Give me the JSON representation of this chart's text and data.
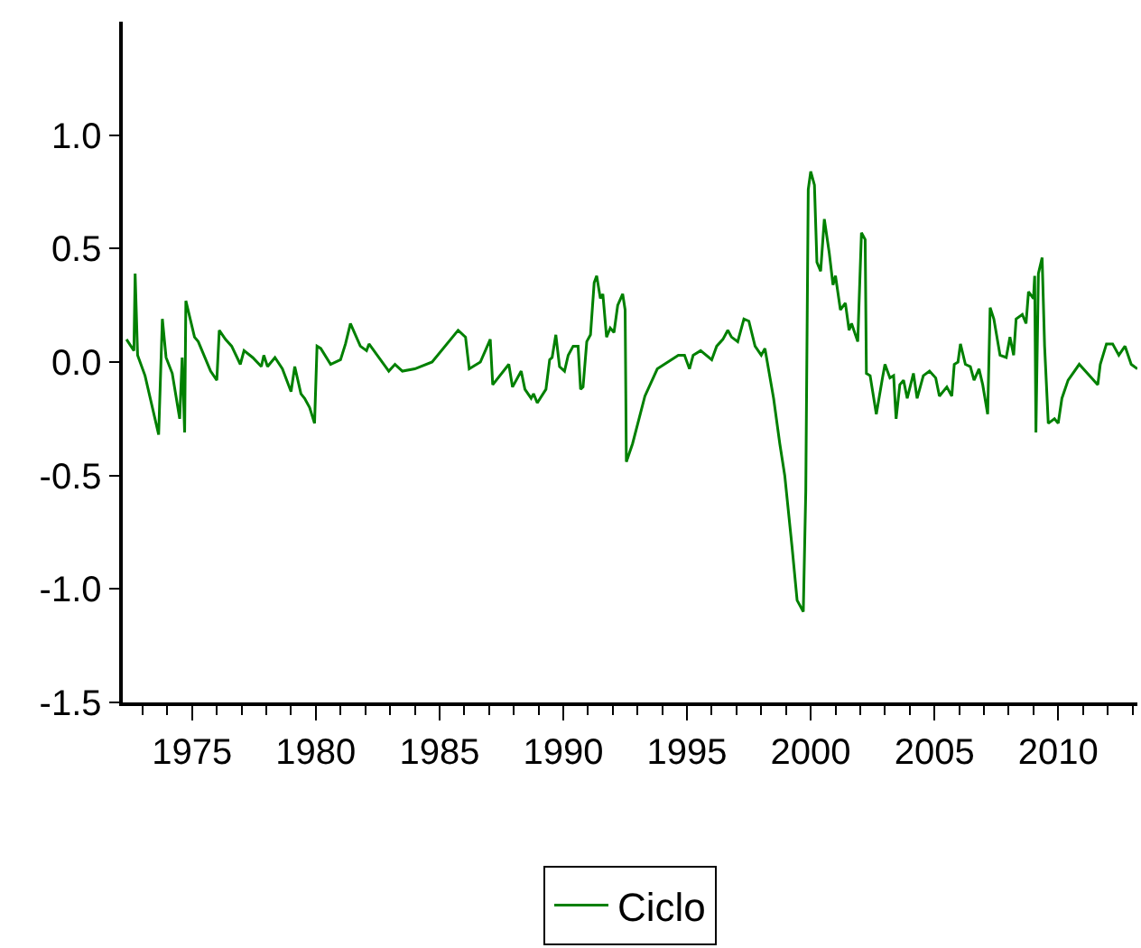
{
  "chart_data": {
    "type": "line",
    "legend": "bottom",
    "grid": false,
    "marker": "none",
    "line_style": "solid",
    "xlim": [
      1972.2,
      2013.2
    ],
    "xticks": [
      1975,
      1980,
      1985,
      1990,
      1995,
      2000,
      2005,
      2010
    ],
    "ylim": [
      -1.5,
      1.5
    ],
    "yticks": [
      -1.5,
      {
        "value": -1,
        "label": "-1.0"
      },
      -0.5,
      {
        "value": 0,
        "label": "0.0"
      },
      0.5,
      {
        "value": 1,
        "label": "1.0"
      }
    ],
    "series": [
      {
        "name": "Ciclo",
        "color": "#008000",
        "x": [
          1972.35,
          1972.65,
          1972.7,
          1972.8,
          1973.1,
          1973.65,
          1973.8,
          1973.95,
          1974.2,
          1974.5,
          1974.6,
          1974.7,
          1974.75,
          1975.1,
          1975.25,
          1975.75,
          1976.0,
          1976.1,
          1976.35,
          1976.6,
          1976.95,
          1977.1,
          1977.45,
          1977.8,
          1977.9,
          1978.05,
          1978.35,
          1978.65,
          1979.0,
          1979.15,
          1979.4,
          1979.55,
          1979.75,
          1979.95,
          1980.05,
          1980.2,
          1980.6,
          1981.0,
          1981.2,
          1981.4,
          1981.8,
          1982.05,
          1982.15,
          1982.95,
          1983.2,
          1983.5,
          1984.0,
          1984.7,
          1985.75,
          1986.05,
          1986.2,
          1986.65,
          1987.05,
          1987.15,
          1987.8,
          1987.95,
          1988.3,
          1988.45,
          1988.7,
          1988.8,
          1988.95,
          1989.3,
          1989.45,
          1989.55,
          1989.7,
          1989.85,
          1990.05,
          1990.2,
          1990.4,
          1990.6,
          1990.7,
          1990.8,
          1990.95,
          1991.1,
          1991.25,
          1991.35,
          1991.5,
          1991.6,
          1991.75,
          1991.9,
          1992.05,
          1992.2,
          1992.4,
          1992.5,
          1992.55,
          1992.8,
          1993.3,
          1993.8,
          1994.65,
          1994.9,
          1995.1,
          1995.25,
          1995.55,
          1996.0,
          1996.2,
          1996.45,
          1996.65,
          1996.8,
          1997.05,
          1997.3,
          1997.5,
          1997.75,
          1998.0,
          1998.15,
          1998.5,
          1998.75,
          1998.95,
          1999.25,
          1999.45,
          1999.7,
          1999.8,
          1999.9,
          2000.0,
          2000.15,
          2000.25,
          2000.4,
          2000.55,
          2000.75,
          2000.9,
          2001.0,
          2001.2,
          2001.4,
          2001.55,
          2001.65,
          2001.9,
          2002.05,
          2002.2,
          2002.25,
          2002.4,
          2002.65,
          2002.9,
          2003.0,
          2003.2,
          2003.35,
          2003.45,
          2003.6,
          2003.75,
          2003.9,
          2004.15,
          2004.3,
          2004.55,
          2004.8,
          2005.05,
          2005.2,
          2005.5,
          2005.7,
          2005.8,
          2005.95,
          2006.05,
          2006.25,
          2006.45,
          2006.6,
          2006.8,
          2006.95,
          2007.15,
          2007.25,
          2007.4,
          2007.65,
          2007.9,
          2008.05,
          2008.2,
          2008.3,
          2008.55,
          2008.7,
          2008.8,
          2009.0,
          2009.05,
          2009.1,
          2009.2,
          2009.35,
          2009.45,
          2009.6,
          2009.85,
          2010.0,
          2010.15,
          2010.4,
          2010.85,
          2011.6,
          2011.7,
          2011.95,
          2012.2,
          2012.45,
          2012.7,
          2012.95,
          2013.2
        ],
        "values": [
          0.1,
          0.05,
          0.39,
          0.03,
          -0.06,
          -0.32,
          0.19,
          0.02,
          -0.05,
          -0.25,
          0.02,
          -0.31,
          0.27,
          0.11,
          0.09,
          -0.04,
          -0.08,
          0.14,
          0.1,
          0.07,
          -0.01,
          0.05,
          0.02,
          -0.02,
          0.03,
          -0.02,
          0.02,
          -0.03,
          -0.13,
          -0.02,
          -0.14,
          -0.16,
          -0.2,
          -0.27,
          0.07,
          0.06,
          -0.01,
          0.01,
          0.08,
          0.17,
          0.07,
          0.05,
          0.08,
          -0.04,
          -0.01,
          -0.04,
          -0.03,
          0.0,
          0.14,
          0.11,
          -0.03,
          0.0,
          0.1,
          -0.1,
          -0.01,
          -0.11,
          -0.04,
          -0.12,
          -0.16,
          -0.14,
          -0.18,
          -0.12,
          0.01,
          0.02,
          0.12,
          -0.02,
          -0.04,
          0.03,
          0.07,
          0.07,
          -0.12,
          -0.11,
          0.09,
          0.12,
          0.35,
          0.38,
          0.28,
          0.3,
          0.11,
          0.15,
          0.13,
          0.25,
          0.3,
          0.23,
          -0.44,
          -0.36,
          -0.15,
          -0.03,
          0.03,
          0.03,
          -0.03,
          0.03,
          0.05,
          0.01,
          0.07,
          0.1,
          0.14,
          0.11,
          0.09,
          0.19,
          0.18,
          0.07,
          0.03,
          0.06,
          -0.16,
          -0.36,
          -0.5,
          -0.82,
          -1.05,
          -1.1,
          -0.57,
          0.76,
          0.84,
          0.78,
          0.44,
          0.4,
          0.63,
          0.48,
          0.34,
          0.38,
          0.23,
          0.26,
          0.14,
          0.17,
          0.09,
          0.57,
          0.54,
          -0.05,
          -0.06,
          -0.23,
          -0.07,
          -0.01,
          -0.07,
          -0.06,
          -0.25,
          -0.1,
          -0.08,
          -0.16,
          -0.05,
          -0.16,
          -0.06,
          -0.04,
          -0.07,
          -0.15,
          -0.11,
          -0.15,
          -0.01,
          0.0,
          0.08,
          -0.01,
          -0.02,
          -0.08,
          -0.03,
          -0.1,
          -0.23,
          0.24,
          0.19,
          0.03,
          0.02,
          0.11,
          0.03,
          0.19,
          0.21,
          0.17,
          0.31,
          0.28,
          0.38,
          -0.31,
          0.39,
          0.46,
          0.07,
          -0.27,
          -0.25,
          -0.27,
          -0.16,
          -0.08,
          -0.01,
          -0.1,
          -0.01,
          0.08,
          0.08,
          0.03,
          0.07,
          -0.01,
          -0.03
        ]
      }
    ]
  }
}
